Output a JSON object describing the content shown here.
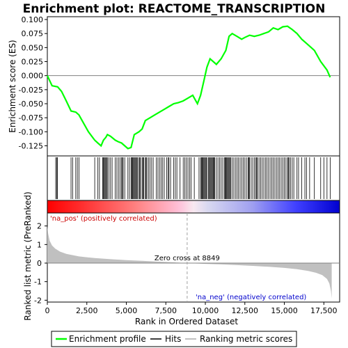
{
  "chart_data": {
    "type": "line",
    "title": "Enrichment plot: REACTOME_TRANSCRIPTION",
    "top_panel": {
      "ylabel": "Enrichment score (ES)",
      "ylim": [
        -0.143,
        0.105
      ],
      "yticks": [
        0.1,
        0.075,
        0.05,
        0.025,
        0.0,
        -0.025,
        -0.05,
        -0.075,
        -0.1,
        -0.125
      ],
      "ytick_labels": [
        "0.100",
        "0.075",
        "0.050",
        "0.025",
        "0.000",
        "-0.025",
        "-0.050",
        "-0.075",
        "-0.100",
        "-0.125"
      ],
      "series": [
        {
          "name": "Enrichment profile",
          "color": "#00ff00",
          "x": [
            0,
            300,
            650,
            900,
            1200,
            1500,
            1800,
            2000,
            2300,
            2600,
            3000,
            3200,
            3400,
            3550,
            3700,
            3800,
            4000,
            4300,
            4500,
            4700,
            4900,
            5100,
            5300,
            5500,
            5800,
            6000,
            6200,
            6500,
            6800,
            7100,
            7400,
            7700,
            8000,
            8300,
            8600,
            8900,
            9200,
            9500,
            9700,
            9900,
            10100,
            10300,
            10500,
            10700,
            11000,
            11300,
            11500,
            11700,
            12000,
            12300,
            12500,
            12800,
            13100,
            13400,
            13700,
            14000,
            14300,
            14600,
            14900,
            15200,
            15500,
            15800,
            16100,
            16500,
            16900,
            17300,
            17700,
            17900
          ],
          "y": [
            0.0,
            -0.018,
            -0.02,
            -0.028,
            -0.045,
            -0.063,
            -0.065,
            -0.07,
            -0.085,
            -0.1,
            -0.115,
            -0.12,
            -0.125,
            -0.115,
            -0.11,
            -0.105,
            -0.108,
            -0.115,
            -0.118,
            -0.12,
            -0.125,
            -0.13,
            -0.128,
            -0.105,
            -0.1,
            -0.095,
            -0.08,
            -0.075,
            -0.07,
            -0.065,
            -0.06,
            -0.055,
            -0.05,
            -0.048,
            -0.045,
            -0.04,
            -0.035,
            -0.05,
            -0.035,
            -0.01,
            0.015,
            0.03,
            0.025,
            0.02,
            0.03,
            0.045,
            0.07,
            0.075,
            0.07,
            0.065,
            0.068,
            0.072,
            0.07,
            0.072,
            0.075,
            0.078,
            0.085,
            0.082,
            0.087,
            0.088,
            0.082,
            0.075,
            0.065,
            0.055,
            0.045,
            0.025,
            0.01,
            -0.003
          ]
        }
      ],
      "zero_line": 0.0
    },
    "hits": [
      530,
      600,
      640,
      1500,
      1600,
      1800,
      1900,
      2000,
      3000,
      3200,
      3300,
      3500,
      3550,
      3600,
      3650,
      3700,
      3750,
      3800,
      3900,
      4000,
      4100,
      4300,
      4400,
      4500,
      4600,
      4700,
      4750,
      4800,
      4900,
      5100,
      5200,
      5300,
      5350,
      5400,
      5450,
      5500,
      5550,
      5600,
      5650,
      5700,
      5800,
      5850,
      5900,
      6000,
      6050,
      6100,
      6200,
      6250,
      6300,
      6400,
      6500,
      6600,
      6700,
      6900,
      7000,
      7100,
      7200,
      7300,
      7400,
      7550,
      7650,
      7700,
      7800,
      8000,
      8100,
      8200,
      8400,
      8600,
      8700,
      8800,
      8900,
      9000,
      9100,
      9300,
      9600,
      9700,
      9750,
      9800,
      9850,
      9900,
      9950,
      10000,
      10050,
      10100,
      10200,
      10250,
      10300,
      10350,
      10400,
      10450,
      10500,
      10550,
      10600,
      10700,
      10800,
      10900,
      11000,
      11100,
      11200,
      11250,
      11300,
      11350,
      11400,
      11450,
      11500,
      11550,
      11600,
      11700,
      11800,
      11900,
      12000,
      12100,
      12200,
      12300,
      12400,
      12500,
      12600,
      12700,
      12750,
      12800,
      12900,
      13000,
      13100,
      13200,
      13250,
      13300,
      13400,
      13500,
      13600,
      13700,
      13800,
      13900,
      14000,
      14100,
      14200,
      14300,
      14400,
      14500,
      14600,
      14700,
      14800,
      14900,
      15000,
      15100,
      15200,
      15250,
      15300,
      15400,
      15500,
      15600,
      15800,
      15900,
      16100,
      16300,
      16400,
      16600,
      16900,
      17300,
      17500,
      17700,
      17900
    ],
    "bottom_panel": {
      "ylabel": "Ranked list metric (PreRanked)",
      "ylim": [
        -2.1,
        2.7
      ],
      "yticks": [
        2,
        1,
        0,
        -1,
        -2
      ],
      "ytick_labels": [
        "2",
        "1",
        "0",
        "-1",
        "-2"
      ],
      "metric_x": [
        0,
        50,
        150,
        300,
        500,
        800,
        1200,
        2000,
        3000,
        4000,
        5000,
        6000,
        7000,
        8000,
        8849,
        10000,
        11000,
        12000,
        13000,
        14000,
        15000,
        15800,
        16500,
        17000,
        17400,
        17700,
        17850,
        17950,
        18000
      ],
      "metric_y": [
        2.0,
        1.6,
        1.2,
        0.95,
        0.78,
        0.62,
        0.5,
        0.36,
        0.27,
        0.21,
        0.16,
        0.12,
        0.08,
        0.04,
        0.0,
        -0.04,
        -0.07,
        -0.11,
        -0.15,
        -0.2,
        -0.26,
        -0.33,
        -0.42,
        -0.52,
        -0.65,
        -0.85,
        -1.1,
        -1.5,
        -1.9
      ],
      "zero_cross": 8849,
      "zero_cross_label": "Zero cross at 8849",
      "pos_label": "'na_pos' (positively correlated)",
      "neg_label": "'na_neg' (negatively correlated)",
      "pos_color": "#cc0000",
      "neg_color": "#0000cc"
    },
    "xlabel": "Rank in Ordered Dataset",
    "xlim": [
      0,
      18500
    ],
    "xticks": [
      0,
      2500,
      5000,
      7500,
      10000,
      12500,
      15000,
      17500
    ],
    "xtick_labels": [
      "0",
      "2,500",
      "5,000",
      "7,500",
      "10,000",
      "12,500",
      "15,000",
      "17,500"
    ],
    "legend": [
      {
        "name": "Enrichment profile",
        "color": "#00ff00"
      },
      {
        "name": "Hits",
        "color": "#000000"
      },
      {
        "name": "Ranking metric scores",
        "color": "#c0c0c0"
      }
    ]
  }
}
